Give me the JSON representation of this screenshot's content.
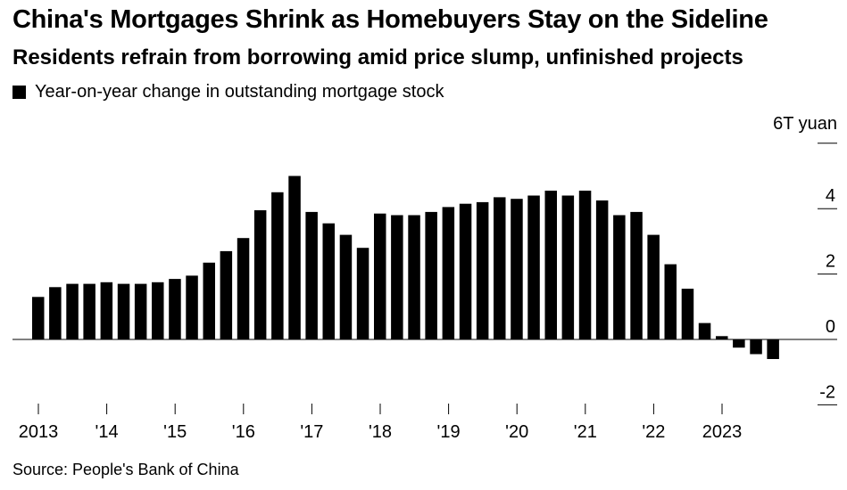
{
  "header": {
    "title": "China's Mortgages Shrink as Homebuyers Stay on the Sideline",
    "subtitle": "Residents refrain from borrowing amid price slump, unfinished projects"
  },
  "legend": {
    "label": "Year-on-year change in outstanding mortgage stock"
  },
  "footer": {
    "source": "Source: People's Bank of China"
  },
  "colors": {
    "bars": "#000000",
    "axis": "#000000"
  },
  "chart_data": {
    "type": "bar",
    "title": "China's Mortgages Shrink as Homebuyers Stay on the Sideline",
    "subtitle": "Residents refrain from borrowing amid price slump, unfinished projects",
    "ylabel": "6T yuan",
    "xlabel": "",
    "ylim": [
      -2,
      6
    ],
    "yticks": [
      6,
      4,
      2,
      0,
      -2
    ],
    "ytick_labels": [
      "6T yuan",
      "4",
      "2",
      "0",
      "-2"
    ],
    "grid": false,
    "legend": "top-left",
    "frequency": "quarterly",
    "x_tick_labels": [
      "2013",
      "'14",
      "'15",
      "'16",
      "'17",
      "'18",
      "'19",
      "'20",
      "'21",
      "'22",
      "2023"
    ],
    "series": [
      {
        "name": "Year-on-year change in outstanding mortgage stock",
        "values": [
          1.3,
          1.6,
          1.7,
          1.7,
          1.75,
          1.7,
          1.7,
          1.75,
          1.85,
          1.95,
          2.35,
          2.7,
          3.1,
          3.95,
          4.5,
          5.0,
          3.9,
          3.55,
          3.2,
          2.8,
          3.85,
          3.8,
          3.8,
          3.9,
          4.05,
          4.15,
          4.2,
          4.35,
          4.3,
          4.4,
          4.55,
          4.4,
          4.55,
          4.25,
          3.8,
          3.9,
          3.2,
          2.3,
          1.55,
          0.5,
          0.1,
          -0.25,
          -0.45,
          -0.6
        ]
      }
    ]
  }
}
